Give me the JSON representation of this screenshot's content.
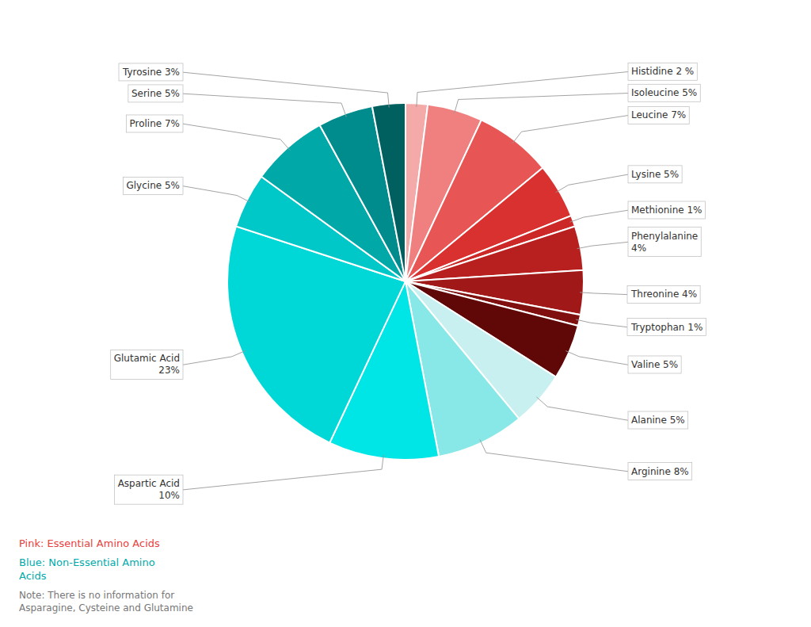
{
  "chart_data": {
    "type": "pie",
    "categories": [
      "Histidine 2 %",
      "Isoleucine 5%",
      "Leucine 7%",
      "Lysine 5%",
      "Methionine 1%",
      "Phenylalanine\n4%",
      "Threonine 4%",
      "Tryptophan 1%",
      "Valine 5%",
      "Alanine 5%",
      "Arginine 8%",
      "Aspartic Acid\n10%",
      "Glutamic Acid\n23%",
      "Glycine 5%",
      "Proline 7%",
      "Serine 5%",
      "Tyrosine 3%"
    ],
    "values": [
      2,
      5,
      7,
      5,
      1,
      4,
      4,
      1,
      5,
      5,
      8,
      10,
      23,
      5,
      7,
      5,
      3
    ],
    "colors": [
      "#F5AAAA",
      "#F08080",
      "#E85555",
      "#D93030",
      "#CC2828",
      "#B82020",
      "#A01818",
      "#801010",
      "#600808",
      "#C8F0F0",
      "#88E8E8",
      "#00E5E5",
      "#00D8D8",
      "#00C8C8",
      "#00A8A8",
      "#008C8C",
      "#006060"
    ],
    "annotations": [
      {
        "text": "Pink: Essential Amino Acids",
        "color": "#E84040"
      },
      {
        "text": "Blue: Non-Essential Amino\nAcids",
        "color": "#00AAAA"
      },
      {
        "text": "Note: There is no information for\nAsparagine, Cysteine and Glutamine",
        "color": "#777777"
      }
    ]
  }
}
